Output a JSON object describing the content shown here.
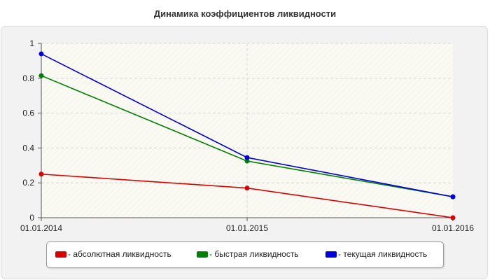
{
  "chart_data": {
    "type": "line",
    "title": "Динамика коэффициентов ликвидности",
    "categories": [
      "01.01.2014",
      "01.01.2015",
      "01.01.2016"
    ],
    "y_ticks": [
      "0",
      "0.2",
      "0.4",
      "0.6",
      "0.8",
      "1"
    ],
    "ylim": [
      0,
      1
    ],
    "xlabel": "",
    "ylabel": "",
    "grid": true,
    "legend_position": "bottom",
    "series": [
      {
        "name": "- абсолютная ликвидность",
        "color": "#dd0000",
        "values": [
          0.25,
          0.17,
          0.0
        ]
      },
      {
        "name": "- быстрая ликвидность",
        "color": "#008000",
        "values": [
          0.815,
          0.325,
          0.12
        ]
      },
      {
        "name": "- текущая ликвидность",
        "color": "#0000dd",
        "values": [
          0.94,
          0.345,
          0.12
        ]
      }
    ]
  }
}
